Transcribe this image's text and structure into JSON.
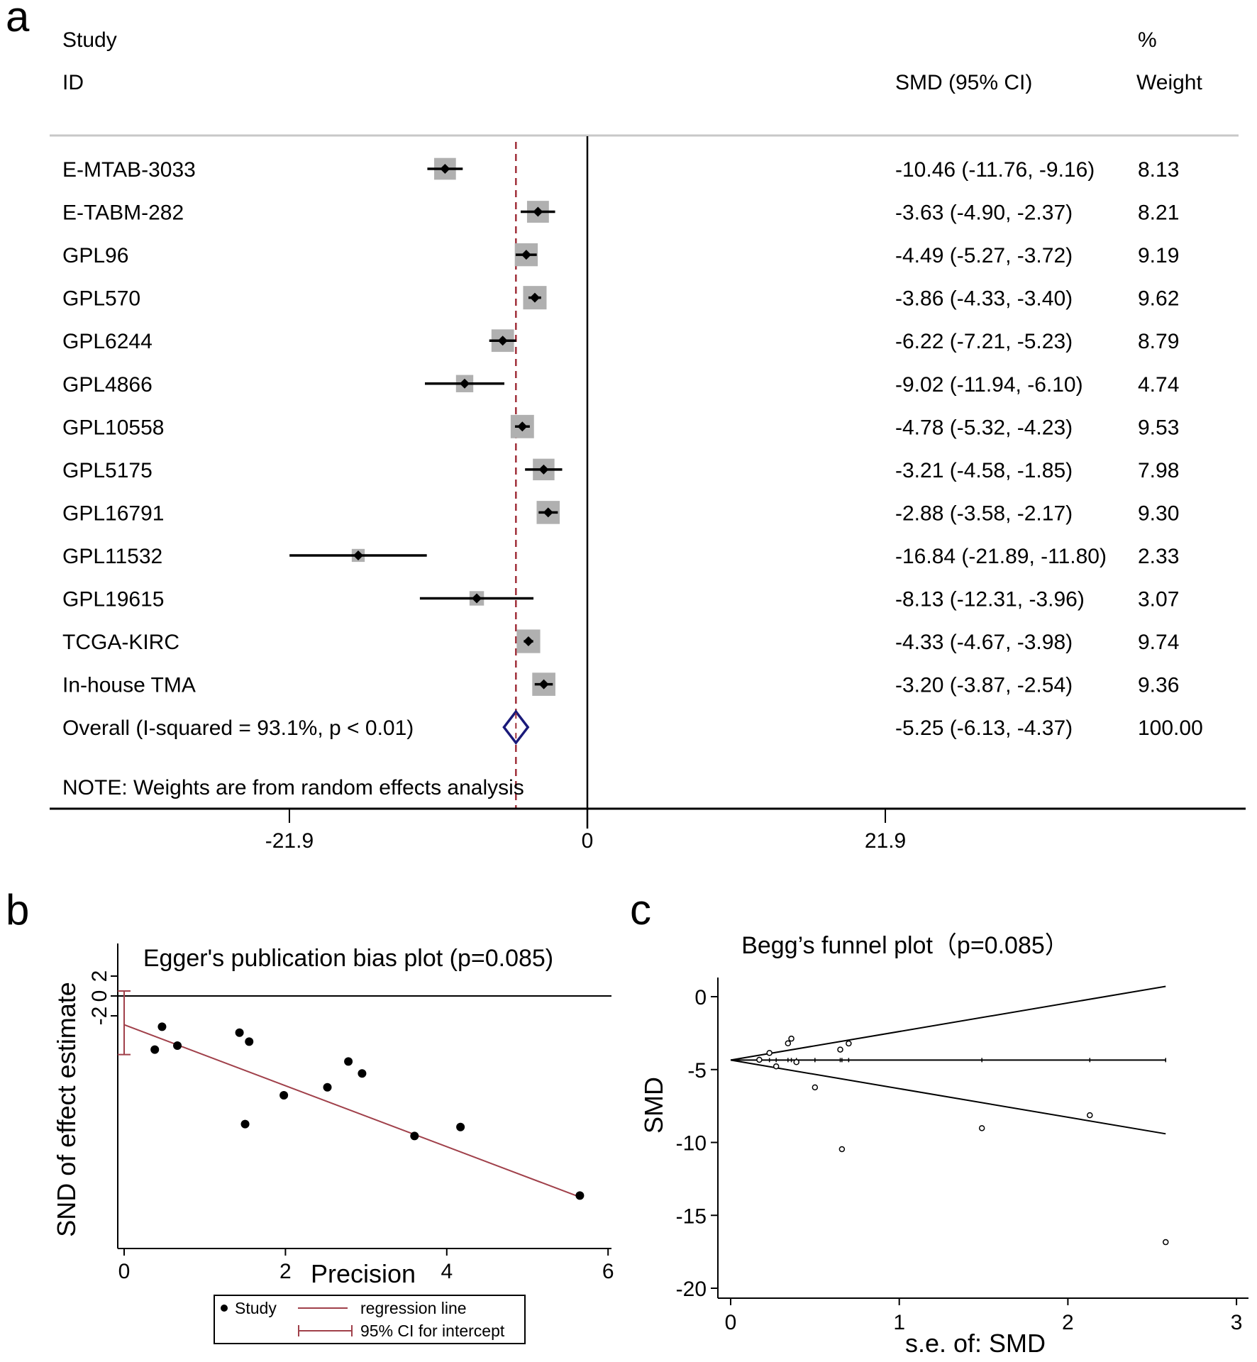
{
  "panels": {
    "a": "a",
    "b": "b",
    "c": "c"
  },
  "chart_data": [
    {
      "type": "forest",
      "panel": "a",
      "headers": {
        "study": "Study",
        "id": "ID",
        "percent": "%",
        "smd": "SMD (95% CI)",
        "weight": "Weight"
      },
      "x_ticks": [
        {
          "value": -21.9,
          "label": "-21.9"
        },
        {
          "value": 0,
          "label": "0"
        },
        {
          "value": 21.9,
          "label": "21.9"
        }
      ],
      "xlim": [
        -31,
        39.5
      ],
      "reference_line": 0,
      "pooled_line": -5.25,
      "studies": [
        {
          "id": "E-MTAB-3033",
          "smd": -10.46,
          "lo": -11.76,
          "hi": -9.16,
          "weight": 8.13,
          "ci_text": "-10.46 (-11.76, -9.16)",
          "weight_text": "8.13"
        },
        {
          "id": "E-TABM-282",
          "smd": -3.63,
          "lo": -4.9,
          "hi": -2.37,
          "weight": 8.21,
          "ci_text": "-3.63 (-4.90, -2.37)",
          "weight_text": "8.21"
        },
        {
          "id": "GPL96",
          "smd": -4.49,
          "lo": -5.27,
          "hi": -3.72,
          "weight": 9.19,
          "ci_text": "-4.49 (-5.27, -3.72)",
          "weight_text": "9.19"
        },
        {
          "id": "GPL570",
          "smd": -3.86,
          "lo": -4.33,
          "hi": -3.4,
          "weight": 9.62,
          "ci_text": "-3.86 (-4.33, -3.40)",
          "weight_text": "9.62"
        },
        {
          "id": "GPL6244",
          "smd": -6.22,
          "lo": -7.21,
          "hi": -5.23,
          "weight": 8.79,
          "ci_text": "-6.22 (-7.21, -5.23)",
          "weight_text": "8.79"
        },
        {
          "id": "GPL4866",
          "smd": -9.02,
          "lo": -11.94,
          "hi": -6.1,
          "weight": 4.74,
          "ci_text": "-9.02 (-11.94, -6.10)",
          "weight_text": "4.74"
        },
        {
          "id": "GPL10558",
          "smd": -4.78,
          "lo": -5.32,
          "hi": -4.23,
          "weight": 9.53,
          "ci_text": "-4.78 (-5.32, -4.23)",
          "weight_text": "9.53"
        },
        {
          "id": "GPL5175",
          "smd": -3.21,
          "lo": -4.58,
          "hi": -1.85,
          "weight": 7.98,
          "ci_text": "-3.21 (-4.58, -1.85)",
          "weight_text": "7.98"
        },
        {
          "id": "GPL16791",
          "smd": -2.88,
          "lo": -3.58,
          "hi": -2.17,
          "weight": 9.3,
          "ci_text": "-2.88 (-3.58, -2.17)",
          "weight_text": "9.30"
        },
        {
          "id": "GPL11532",
          "smd": -16.84,
          "lo": -21.89,
          "hi": -11.8,
          "weight": 2.33,
          "ci_text": "-16.84 (-21.89, -11.80)",
          "weight_text": "2.33"
        },
        {
          "id": "GPL19615",
          "smd": -8.13,
          "lo": -12.31,
          "hi": -3.96,
          "weight": 3.07,
          "ci_text": "-8.13 (-12.31, -3.96)",
          "weight_text": "3.07"
        },
        {
          "id": "TCGA-KIRC",
          "smd": -4.33,
          "lo": -4.67,
          "hi": -3.98,
          "weight": 9.74,
          "ci_text": "-4.33 (-4.67, -3.98)",
          "weight_text": "9.74"
        },
        {
          "id": "In-house TMA",
          "smd": -3.2,
          "lo": -3.87,
          "hi": -2.54,
          "weight": 9.36,
          "ci_text": "-3.20 (-3.87, -2.54)",
          "weight_text": "9.36"
        }
      ],
      "overall": {
        "label": "Overall  (I-squared = 93.1%, p < 0.01)",
        "smd": -5.25,
        "lo": -6.13,
        "hi": -4.37,
        "ci_text": "-5.25 (-6.13, -4.37)",
        "weight_text": "100.00"
      },
      "note": "NOTE: Weights are from random effects analysis",
      "colors": {
        "box": "#b0b0b0",
        "diamond": "#1a1a7a",
        "pooled_line": "#a0303a"
      }
    },
    {
      "type": "scatter",
      "panel": "b",
      "title": "Egger's publication bias plot (p=0.085)",
      "xlabel": "Precision",
      "ylabel": "SND of effect estimate",
      "xlim": [
        -0.2,
        6.1
      ],
      "ylim": [
        -21,
        3
      ],
      "x_ticks": [
        0,
        2,
        4,
        6
      ],
      "y_ticks": [
        -2,
        0,
        2
      ],
      "hline": 0,
      "points": [
        {
          "x": 0.38,
          "y": -5.4
        },
        {
          "x": 0.47,
          "y": -3.1
        },
        {
          "x": 0.66,
          "y": -5.0
        },
        {
          "x": 1.43,
          "y": -3.7
        },
        {
          "x": 1.55,
          "y": -4.6
        },
        {
          "x": 1.5,
          "y": -12.9
        },
        {
          "x": 1.98,
          "y": -10.0
        },
        {
          "x": 2.52,
          "y": -9.2
        },
        {
          "x": 2.78,
          "y": -6.6
        },
        {
          "x": 2.95,
          "y": -7.8
        },
        {
          "x": 3.6,
          "y": -14.1
        },
        {
          "x": 4.17,
          "y": -13.2
        },
        {
          "x": 5.65,
          "y": -20.1
        }
      ],
      "regression": {
        "intercept": -2.9,
        "slope": -3.07,
        "x_end": 5.65
      },
      "intercept_ci": [
        0.5,
        -5.9
      ],
      "legend": {
        "position": "bottom",
        "items": [
          "Study",
          "regression line",
          "95% CI for intercept"
        ]
      },
      "colors": {
        "regression": "#a0404a"
      }
    },
    {
      "type": "scatter",
      "panel": "c",
      "title": "Begg’s funnel plot（p=0.085）",
      "xlabel": "s.e. of: SMD",
      "ylabel": "SMD",
      "xlim": [
        -0.07,
        3.07
      ],
      "ylim": [
        -21.2,
        1.7
      ],
      "x_ticks": [
        0,
        1,
        2,
        3
      ],
      "y_ticks": [
        0,
        -5,
        -10,
        -15,
        -20
      ],
      "pooled": -4.35,
      "funnel_x_end": 2.58,
      "points": [
        {
          "x": 0.17,
          "y": -4.33
        },
        {
          "x": 0.23,
          "y": -3.86
        },
        {
          "x": 0.27,
          "y": -4.78
        },
        {
          "x": 0.34,
          "y": -3.2
        },
        {
          "x": 0.36,
          "y": -2.88
        },
        {
          "x": 0.39,
          "y": -4.49
        },
        {
          "x": 0.5,
          "y": -6.22
        },
        {
          "x": 0.65,
          "y": -3.63
        },
        {
          "x": 0.66,
          "y": -10.46
        },
        {
          "x": 0.7,
          "y": -3.21
        },
        {
          "x": 1.49,
          "y": -9.02
        },
        {
          "x": 2.13,
          "y": -8.13
        },
        {
          "x": 2.58,
          "y": -16.84
        }
      ]
    }
  ]
}
